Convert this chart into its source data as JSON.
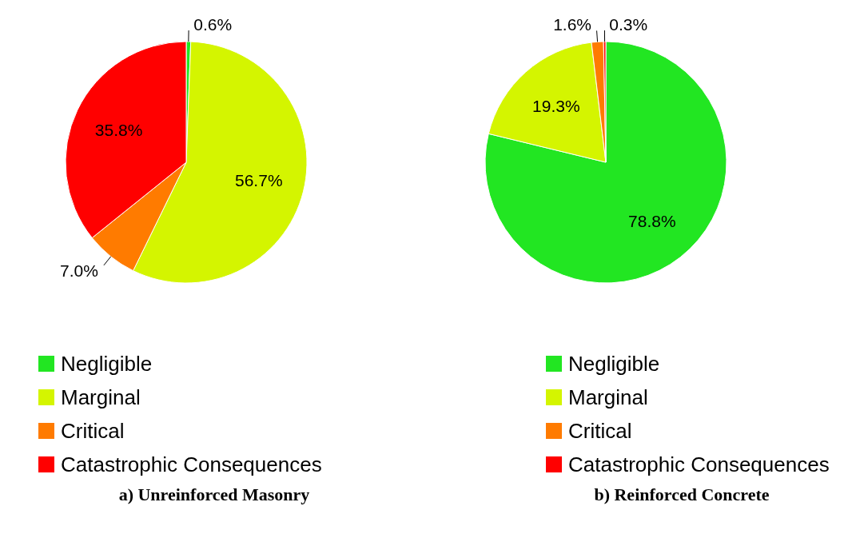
{
  "chart_data": [
    {
      "type": "pie",
      "title": "a) Unreinforced Masonry",
      "categories": [
        "Negligible",
        "Marginal",
        "Critical",
        "Catastrophic Consequences"
      ],
      "values": [
        0.6,
        56.7,
        7.0,
        35.8
      ],
      "value_labels": [
        "0.6%",
        "56.7%",
        "7.0%",
        "35.8%"
      ],
      "colors": [
        "#22e622",
        "#d4f500",
        "#ff7b00",
        "#ff0000"
      ],
      "legend": "bottom"
    },
    {
      "type": "pie",
      "title": "b) Reinforced Concrete",
      "categories": [
        "Negligible",
        "Marginal",
        "Critical",
        "Catastrophic Consequences"
      ],
      "values": [
        78.8,
        19.3,
        1.6,
        0.3
      ],
      "value_labels": [
        "78.8%",
        "19.3%",
        "1.6%",
        "0.3%"
      ],
      "colors": [
        "#22e622",
        "#d4f500",
        "#ff7b00",
        "#ff0000"
      ],
      "legend": "bottom"
    }
  ]
}
